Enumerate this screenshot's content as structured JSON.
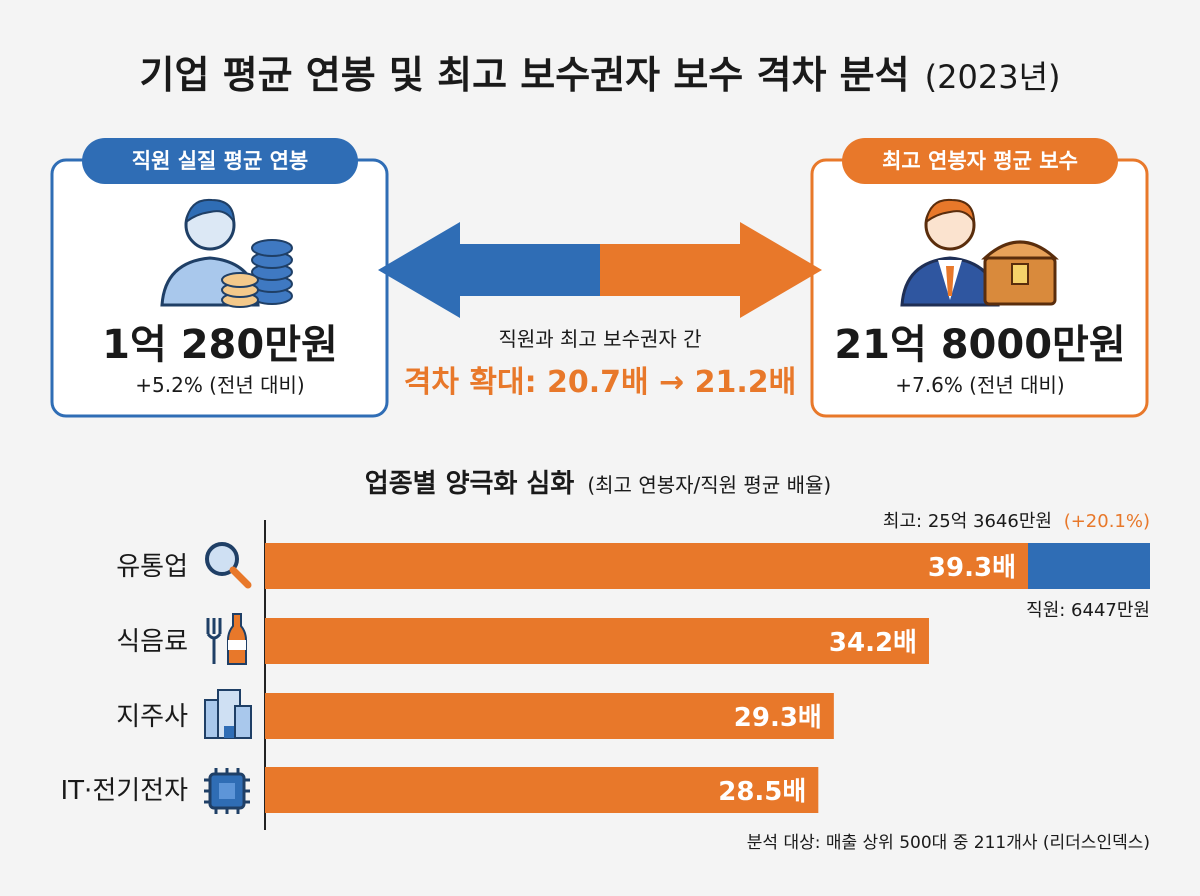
{
  "header": {
    "title": "기업 평균 연봉 및 최고 보수권자 보수 격차 분석",
    "year": "(2023년)"
  },
  "left_card": {
    "badge": "직원 실질 평균 연봉",
    "amount": "1억 280만원",
    "change": "+5.2% (전년 대비)"
  },
  "right_card": {
    "badge": "최고 연봉자 평균 보수",
    "amount": "21억 8000만원",
    "change": "+7.6% (전년 대비)"
  },
  "gap": {
    "caption": "직원과 최고 보수권자 간",
    "headline": "격차 확대: 20.7배 → 21.2배"
  },
  "chart_data": {
    "type": "bar",
    "orientation": "horizontal",
    "title": "업종별 양극화 심화",
    "subtitle": "(최고 연봉자/직원 평균 배율)",
    "categories": [
      "유통업",
      "식음료",
      "지주사",
      "IT·전기전자"
    ],
    "values": [
      39.3,
      34.2,
      29.3,
      28.5
    ],
    "value_labels": [
      "39.3배",
      "34.2배",
      "29.3배",
      "28.5배"
    ],
    "color": "#e8782a",
    "annotations": {
      "top": "최고: 25억 3646만원",
      "top_change": "(+20.1%)",
      "bottom": "직원: 6447만원"
    }
  },
  "footer": {
    "source": "분석 대상: 매출 상위 500대 중 211개사 (리더스인덱스)"
  }
}
